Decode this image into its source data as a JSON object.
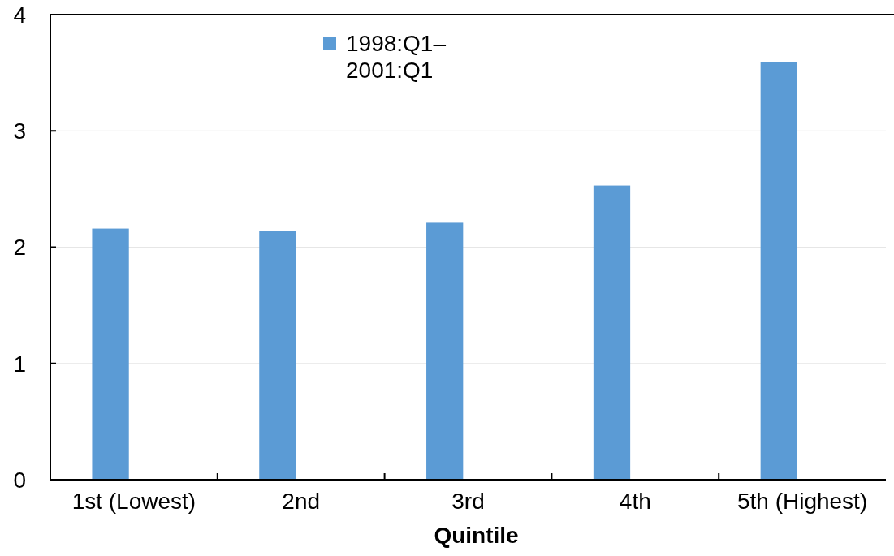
{
  "chart_data": {
    "type": "bar",
    "xlabel": "Quintile",
    "categories": [
      "1st (Lowest)",
      "2nd",
      "3rd",
      "4th",
      "5th (Highest)"
    ],
    "series": [
      {
        "name": "1998:Q1–2001:Q1",
        "color": "#5b9bd5",
        "values": [
          2.16,
          2.14,
          2.21,
          2.53,
          3.59
        ]
      }
    ],
    "ylim": [
      0,
      4
    ],
    "yticks": [
      0,
      1,
      2,
      3,
      4
    ],
    "grid": "y",
    "legend": "top"
  }
}
